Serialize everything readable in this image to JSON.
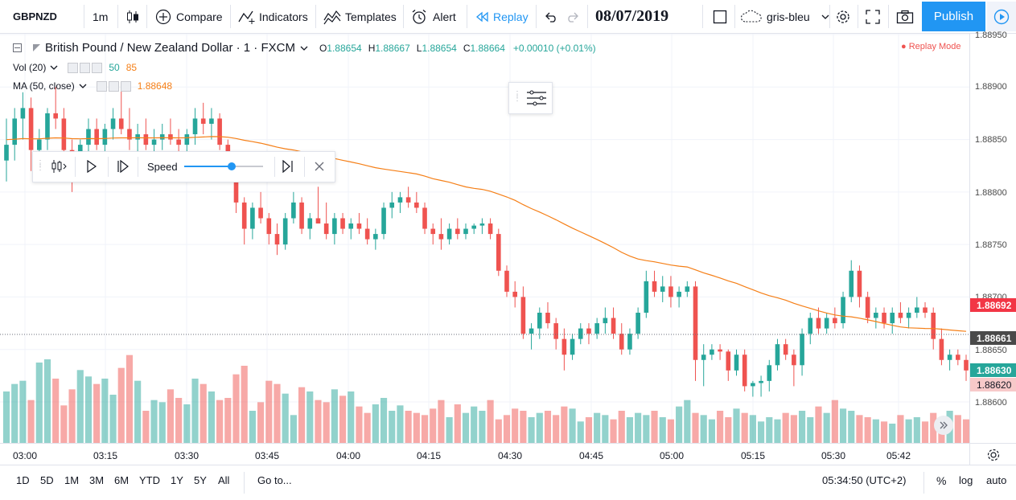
{
  "toolbar": {
    "symbol": "GBPNZD",
    "interval": "1m",
    "compare_label": "Compare",
    "indicators_label": "Indicators",
    "templates_label": "Templates",
    "alert_label": "Alert",
    "replay_label": "Replay",
    "replay_date": "08/07/2019",
    "theme_label": "gris-bleu",
    "publish_label": "Publish"
  },
  "legend": {
    "title": "British Pound / New Zealand Dollar · 1 · FXCM",
    "o_label": "O",
    "o_value": "1.88654",
    "h_label": "H",
    "h_value": "1.88667",
    "l_label": "L",
    "l_value": "1.88654",
    "c_label": "C",
    "c_value": "1.88664",
    "change": "+0.00010 (+0.01%)",
    "replay_mode": "Replay Mode",
    "vol_label": "Vol (20)",
    "vol_value_1": "50",
    "vol_value_2": "85",
    "ma_label": "MA (50, close)",
    "ma_value": "1.88648"
  },
  "replay_panel": {
    "speed_label": "Speed",
    "speed_level": 0.6
  },
  "price_axis": {
    "labels": [
      "1.88950",
      "1.88900",
      "1.88850",
      "1.88800",
      "1.88750",
      "1.88700",
      "1.88650",
      "1.88600"
    ],
    "tag_red": "1.88692",
    "tag_gray": "1.88661",
    "tag_green": "1.88630",
    "tag_pink": "1.88620"
  },
  "time_axis": {
    "labels": [
      "03:00",
      "03:15",
      "03:30",
      "03:45",
      "04:00",
      "04:15",
      "04:30",
      "04:45",
      "05:00",
      "05:15",
      "05:30",
      "05:42"
    ]
  },
  "bottom_bar": {
    "ranges": [
      "1D",
      "5D",
      "1M",
      "3M",
      "6M",
      "YTD",
      "1Y",
      "5Y",
      "All"
    ],
    "goto_label": "Go to...",
    "clock": "05:34:50 (UTC+2)",
    "percent_label": "%",
    "log_label": "log",
    "auto_label": "auto"
  },
  "colors": {
    "up": "#26a69a",
    "down": "#ef5350",
    "ma": "#f57f17",
    "accent": "#2196f3"
  },
  "chart_data": {
    "type": "candlestick",
    "ma_price_level_start": 1.8885,
    "candles": [
      [
        1.8883,
        1.8887,
        1.8881,
        1.88845
      ],
      [
        1.88845,
        1.8888,
        1.8883,
        1.8887
      ],
      [
        1.8887,
        1.88895,
        1.8885,
        1.8888
      ],
      [
        1.8888,
        1.8889,
        1.8882,
        1.8884
      ],
      [
        1.8884,
        1.8886,
        1.8882,
        1.8885
      ],
      [
        1.8885,
        1.8888,
        1.8884,
        1.88875
      ],
      [
        1.88875,
        1.889,
        1.8886,
        1.8887
      ],
      [
        1.8887,
        1.8888,
        1.8883,
        1.8884
      ],
      [
        1.8884,
        1.8885,
        1.888,
        1.8882
      ],
      [
        1.8882,
        1.8885,
        1.8881,
        1.88845
      ],
      [
        1.88845,
        1.8887,
        1.88835,
        1.8886
      ],
      [
        1.8886,
        1.8887,
        1.8884,
        1.88845
      ],
      [
        1.88845,
        1.88865,
        1.88835,
        1.8886
      ],
      [
        1.8886,
        1.8888,
        1.8885,
        1.8887
      ],
      [
        1.8887,
        1.889,
        1.88855,
        1.8886
      ],
      [
        1.8886,
        1.8888,
        1.8884,
        1.8885
      ],
      [
        1.8885,
        1.88865,
        1.88835,
        1.88855
      ],
      [
        1.88855,
        1.8887,
        1.8884,
        1.88845
      ],
      [
        1.88845,
        1.8886,
        1.8883,
        1.8885
      ],
      [
        1.8885,
        1.88865,
        1.8884,
        1.88855
      ],
      [
        1.88855,
        1.8887,
        1.88845,
        1.8885
      ],
      [
        1.8885,
        1.8886,
        1.88835,
        1.88845
      ],
      [
        1.88845,
        1.8886,
        1.88835,
        1.88855
      ],
      [
        1.88855,
        1.8888,
        1.88845,
        1.8887
      ],
      [
        1.8887,
        1.88885,
        1.88855,
        1.88865
      ],
      [
        1.88865,
        1.8888,
        1.8885,
        1.8887
      ],
      [
        1.8887,
        1.88875,
        1.8884,
        1.88845
      ],
      [
        1.88845,
        1.8885,
        1.8882,
        1.88825
      ],
      [
        1.88825,
        1.8883,
        1.8878,
        1.8879
      ],
      [
        1.8879,
        1.88795,
        1.8875,
        1.88765
      ],
      [
        1.88765,
        1.8879,
        1.88755,
        1.88785
      ],
      [
        1.88785,
        1.888,
        1.8877,
        1.88775
      ],
      [
        1.88775,
        1.8878,
        1.8875,
        1.8876
      ],
      [
        1.8876,
        1.8877,
        1.8874,
        1.8875
      ],
      [
        1.8875,
        1.8878,
        1.88745,
        1.88775
      ],
      [
        1.88775,
        1.888,
        1.8877,
        1.8879
      ],
      [
        1.8879,
        1.88795,
        1.8876,
        1.88765
      ],
      [
        1.88765,
        1.8878,
        1.88755,
        1.88775
      ],
      [
        1.88775,
        1.88805,
        1.8877,
        1.8877
      ],
      [
        1.8877,
        1.8879,
        1.88755,
        1.8876
      ],
      [
        1.8876,
        1.8878,
        1.8875,
        1.88775
      ],
      [
        1.88775,
        1.8878,
        1.8876,
        1.88765
      ],
      [
        1.88765,
        1.88775,
        1.88755,
        1.8877
      ],
      [
        1.8877,
        1.8878,
        1.8876,
        1.88765
      ],
      [
        1.88765,
        1.88775,
        1.8875,
        1.88755
      ],
      [
        1.88755,
        1.88765,
        1.88745,
        1.8876
      ],
      [
        1.8876,
        1.8879,
        1.88755,
        1.88785
      ],
      [
        1.88785,
        1.888,
        1.88775,
        1.8879
      ],
      [
        1.8879,
        1.888,
        1.8878,
        1.88795
      ],
      [
        1.88795,
        1.88805,
        1.88785,
        1.8879
      ],
      [
        1.8879,
        1.888,
        1.8878,
        1.88785
      ],
      [
        1.88785,
        1.8879,
        1.8876,
        1.88765
      ],
      [
        1.88765,
        1.8877,
        1.8875,
        1.8876
      ],
      [
        1.8876,
        1.88775,
        1.88745,
        1.88755
      ],
      [
        1.88755,
        1.8877,
        1.8875,
        1.88765
      ],
      [
        1.88765,
        1.88775,
        1.88755,
        1.8876
      ],
      [
        1.8876,
        1.8877,
        1.88755,
        1.88765
      ],
      [
        1.88765,
        1.8877,
        1.8876,
        1.88768
      ],
      [
        1.88768,
        1.88775,
        1.8876,
        1.8877
      ],
      [
        1.8877,
        1.88775,
        1.88755,
        1.8876
      ],
      [
        1.8876,
        1.88765,
        1.8872,
        1.88725
      ],
      [
        1.88725,
        1.8873,
        1.887,
        1.88705
      ],
      [
        1.88705,
        1.88715,
        1.8869,
        1.887
      ],
      [
        1.887,
        1.8871,
        1.8866,
        1.88665
      ],
      [
        1.88665,
        1.88675,
        1.8865,
        1.8867
      ],
      [
        1.8867,
        1.8869,
        1.8866,
        1.88685
      ],
      [
        1.88685,
        1.88695,
        1.8867,
        1.88675
      ],
      [
        1.88675,
        1.8868,
        1.8865,
        1.8866
      ],
      [
        1.8866,
        1.8867,
        1.8863,
        1.88645
      ],
      [
        1.88645,
        1.88665,
        1.8864,
        1.8866
      ],
      [
        1.8866,
        1.88675,
        1.88655,
        1.8867
      ],
      [
        1.8867,
        1.88675,
        1.88655,
        1.88665
      ],
      [
        1.88665,
        1.8868,
        1.8866,
        1.88675
      ],
      [
        1.88675,
        1.8869,
        1.88665,
        1.8868
      ],
      [
        1.8868,
        1.8869,
        1.8866,
        1.88665
      ],
      [
        1.88665,
        1.88675,
        1.88645,
        1.8865
      ],
      [
        1.8865,
        1.8867,
        1.88645,
        1.88665
      ],
      [
        1.88665,
        1.8869,
        1.8866,
        1.88685
      ],
      [
        1.88685,
        1.88725,
        1.8868,
        1.88715
      ],
      [
        1.88715,
        1.88725,
        1.887,
        1.88705
      ],
      [
        1.88705,
        1.8872,
        1.88695,
        1.8871
      ],
      [
        1.8871,
        1.8872,
        1.8869,
        1.887
      ],
      [
        1.887,
        1.8871,
        1.8869,
        1.88705
      ],
      [
        1.88705,
        1.88715,
        1.887,
        1.8871
      ],
      [
        1.8871,
        1.88715,
        1.8862,
        1.8864
      ],
      [
        1.8864,
        1.88655,
        1.88615,
        1.88645
      ],
      [
        1.88645,
        1.88655,
        1.8864,
        1.8865
      ],
      [
        1.8865,
        1.88655,
        1.8864,
        1.88648
      ],
      [
        1.88648,
        1.8865,
        1.8862,
        1.8863
      ],
      [
        1.8863,
        1.8865,
        1.88625,
        1.88645
      ],
      [
        1.88645,
        1.8865,
        1.8861,
        1.88615
      ],
      [
        1.88615,
        1.8862,
        1.88605,
        1.88618
      ],
      [
        1.88618,
        1.88625,
        1.88605,
        1.8862
      ],
      [
        1.8862,
        1.8864,
        1.8861,
        1.88635
      ],
      [
        1.88635,
        1.8866,
        1.8863,
        1.88655
      ],
      [
        1.88655,
        1.8866,
        1.8864,
        1.88645
      ],
      [
        1.88645,
        1.8865,
        1.88615,
        1.88635
      ],
      [
        1.88635,
        1.8867,
        1.88625,
        1.88665
      ],
      [
        1.88665,
        1.88685,
        1.88655,
        1.8868
      ],
      [
        1.8868,
        1.8869,
        1.88665,
        1.8867
      ],
      [
        1.8867,
        1.88685,
        1.88665,
        1.8868
      ],
      [
        1.8868,
        1.8869,
        1.8867,
        1.88675
      ],
      [
        1.88675,
        1.88705,
        1.8867,
        1.887
      ],
      [
        1.887,
        1.88735,
        1.88695,
        1.88725
      ],
      [
        1.88725,
        1.8873,
        1.8869,
        1.887
      ],
      [
        1.887,
        1.88705,
        1.88675,
        1.8868
      ],
      [
        1.8868,
        1.8869,
        1.8867,
        1.88685
      ],
      [
        1.88685,
        1.8869,
        1.8867,
        1.88675
      ],
      [
        1.88675,
        1.8869,
        1.88665,
        1.88685
      ],
      [
        1.88685,
        1.88695,
        1.88675,
        1.8868
      ],
      [
        1.8868,
        1.8869,
        1.8867,
        1.88685
      ],
      [
        1.88685,
        1.887,
        1.8868,
        1.8869
      ],
      [
        1.8869,
        1.88695,
        1.8868,
        1.88685
      ],
      [
        1.88685,
        1.8869,
        1.8865,
        1.8866
      ],
      [
        1.8866,
        1.8867,
        1.88635,
        1.8864
      ],
      [
        1.8864,
        1.8865,
        1.8863,
        1.88645
      ],
      [
        1.88645,
        1.8865,
        1.88635,
        1.8864
      ],
      [
        1.8864,
        1.88645,
        1.8862,
        1.8863
      ]
    ],
    "volumes": [
      48,
      55,
      58,
      40,
      75,
      78,
      60,
      35,
      50,
      68,
      62,
      55,
      60,
      45,
      70,
      82,
      58,
      30,
      40,
      38,
      50,
      42,
      36,
      60,
      55,
      48,
      40,
      42,
      64,
      72,
      30,
      38,
      58,
      55,
      46,
      26,
      52,
      48,
      40,
      38,
      50,
      44,
      48,
      34,
      28,
      36,
      42,
      30,
      35,
      30,
      28,
      26,
      32,
      40,
      24,
      36,
      28,
      34,
      30,
      40,
      22,
      26,
      32,
      30,
      24,
      28,
      30,
      26,
      34,
      32,
      20,
      24,
      28,
      26,
      22,
      30,
      24,
      28,
      26,
      30,
      24,
      22,
      34,
      40,
      28,
      26,
      22,
      30,
      24,
      32,
      28,
      26,
      20,
      24,
      22,
      28,
      26,
      30,
      24,
      34,
      28,
      40,
      32,
      30,
      26,
      24,
      22,
      20,
      18,
      26,
      22,
      24,
      20,
      28,
      24,
      30,
      26,
      22,
      20,
      24
    ]
  }
}
